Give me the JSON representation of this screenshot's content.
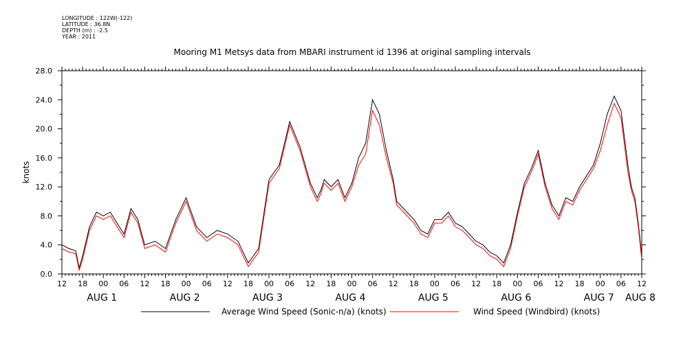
{
  "metadata": {
    "longitude": "LONGITUDE : 122W(-122)",
    "latitude": "LATITUDE : 36.8N",
    "depth": "DEPTH (m) : -2.5",
    "year": "YEAR : 2011"
  },
  "chart_data": {
    "type": "line",
    "title": "Mooring M1 Metsys data from MBARI instrument id 1396 at original sampling intervals",
    "ylabel": "knots",
    "xlabel": "",
    "ylim": [
      0,
      28
    ],
    "xlim_hours": [
      0,
      168
    ],
    "yticks": [
      "0.0",
      "4.0",
      "8.0",
      "12.0",
      "16.0",
      "20.0",
      "24.0",
      "28.0"
    ],
    "hour_labels": [
      "12",
      "18",
      "00",
      "06",
      "12",
      "18",
      "00",
      "06",
      "12",
      "18",
      "00",
      "06",
      "12",
      "18",
      "00",
      "06",
      "12",
      "18",
      "00",
      "06",
      "12",
      "18",
      "00",
      "06",
      "12",
      "18",
      "00",
      "06",
      "12"
    ],
    "day_labels": [
      {
        "label": "AUG  1",
        "hour": 12
      },
      {
        "label": "AUG  2",
        "hour": 36
      },
      {
        "label": "AUG  3",
        "hour": 60
      },
      {
        "label": "AUG  4",
        "hour": 84
      },
      {
        "label": "AUG  5",
        "hour": 108
      },
      {
        "label": "AUG  6",
        "hour": 132
      },
      {
        "label": "AUG  7",
        "hour": 156
      },
      {
        "label": "AUG  8",
        "hour": 180
      }
    ],
    "legend": "bottom",
    "series": [
      {
        "name": "Average Wind Speed (Sonic-n/a) (knots)",
        "color": "#000000",
        "x": [
          0,
          2,
          4,
          5,
          6,
          8,
          10,
          12,
          14,
          16,
          18,
          20,
          22,
          24,
          27,
          30,
          33,
          36,
          39,
          42,
          45,
          48,
          51,
          54,
          57,
          60,
          63,
          66,
          69,
          72,
          74,
          75,
          76,
          78,
          80,
          82,
          84,
          86,
          88,
          90,
          92,
          94,
          96,
          97,
          98,
          100,
          102,
          104,
          106,
          108,
          110,
          112,
          114,
          116,
          118,
          120,
          122,
          124,
          126,
          128,
          130,
          132,
          134,
          136,
          138,
          140,
          142,
          144,
          146,
          148,
          150,
          152,
          154,
          156,
          158,
          160,
          162,
          164,
          165,
          166,
          167,
          168
        ],
        "y": [
          4.0,
          3.5,
          3.2,
          0.8,
          2.5,
          6.5,
          8.5,
          8.0,
          8.5,
          7.0,
          5.5,
          9.0,
          7.5,
          4.0,
          4.5,
          3.5,
          7.5,
          10.5,
          6.5,
          5.0,
          6.0,
          5.5,
          4.5,
          1.5,
          3.5,
          13.0,
          15.0,
          21.0,
          17.5,
          12.5,
          10.5,
          11.5,
          13.0,
          12.0,
          13.0,
          10.5,
          12.5,
          16.0,
          18.0,
          24.0,
          22.0,
          17.0,
          13.0,
          10.0,
          9.5,
          8.5,
          7.5,
          6.0,
          5.5,
          7.5,
          7.5,
          8.5,
          7.0,
          6.5,
          5.5,
          4.5,
          4.0,
          3.0,
          2.5,
          1.5,
          4.0,
          8.5,
          12.5,
          14.5,
          17.0,
          12.5,
          9.5,
          8.0,
          10.5,
          10.0,
          12.0,
          13.5,
          15.0,
          18.0,
          22.0,
          24.5,
          22.5,
          15.0,
          12.0,
          10.5,
          7.0,
          2.5
        ]
      },
      {
        "name": "Wind Speed (Windbird) (knots)",
        "color": "#ff0000",
        "x": [
          0,
          2,
          4,
          5,
          6,
          8,
          10,
          12,
          14,
          16,
          18,
          20,
          22,
          24,
          27,
          30,
          33,
          36,
          39,
          42,
          45,
          48,
          51,
          54,
          57,
          60,
          63,
          66,
          69,
          72,
          74,
          75,
          76,
          78,
          80,
          82,
          84,
          86,
          88,
          90,
          92,
          94,
          96,
          97,
          98,
          100,
          102,
          104,
          106,
          108,
          110,
          112,
          114,
          116,
          118,
          120,
          122,
          124,
          126,
          128,
          130,
          132,
          134,
          136,
          138,
          140,
          142,
          144,
          146,
          148,
          150,
          152,
          154,
          156,
          158,
          160,
          162,
          164,
          165,
          166,
          167,
          168
        ],
        "y": [
          3.5,
          3.0,
          2.8,
          0.5,
          2.0,
          6.0,
          8.0,
          7.5,
          8.0,
          6.5,
          5.0,
          8.5,
          7.0,
          3.5,
          4.0,
          3.0,
          7.0,
          10.0,
          6.0,
          4.5,
          5.5,
          5.0,
          4.0,
          1.0,
          3.0,
          12.5,
          14.5,
          20.5,
          17.0,
          12.0,
          10.0,
          11.0,
          12.5,
          11.5,
          12.5,
          10.0,
          12.0,
          15.0,
          16.5,
          22.5,
          20.5,
          16.0,
          12.5,
          9.5,
          9.0,
          8.0,
          7.0,
          5.5,
          5.0,
          7.0,
          7.0,
          8.0,
          6.5,
          6.0,
          5.0,
          4.0,
          3.5,
          2.5,
          2.0,
          1.0,
          3.5,
          8.0,
          12.0,
          14.0,
          16.5,
          12.0,
          9.0,
          7.5,
          10.0,
          9.5,
          11.5,
          13.0,
          14.5,
          17.0,
          20.5,
          23.5,
          21.5,
          14.0,
          11.5,
          10.0,
          6.5,
          2.0
        ]
      }
    ]
  }
}
